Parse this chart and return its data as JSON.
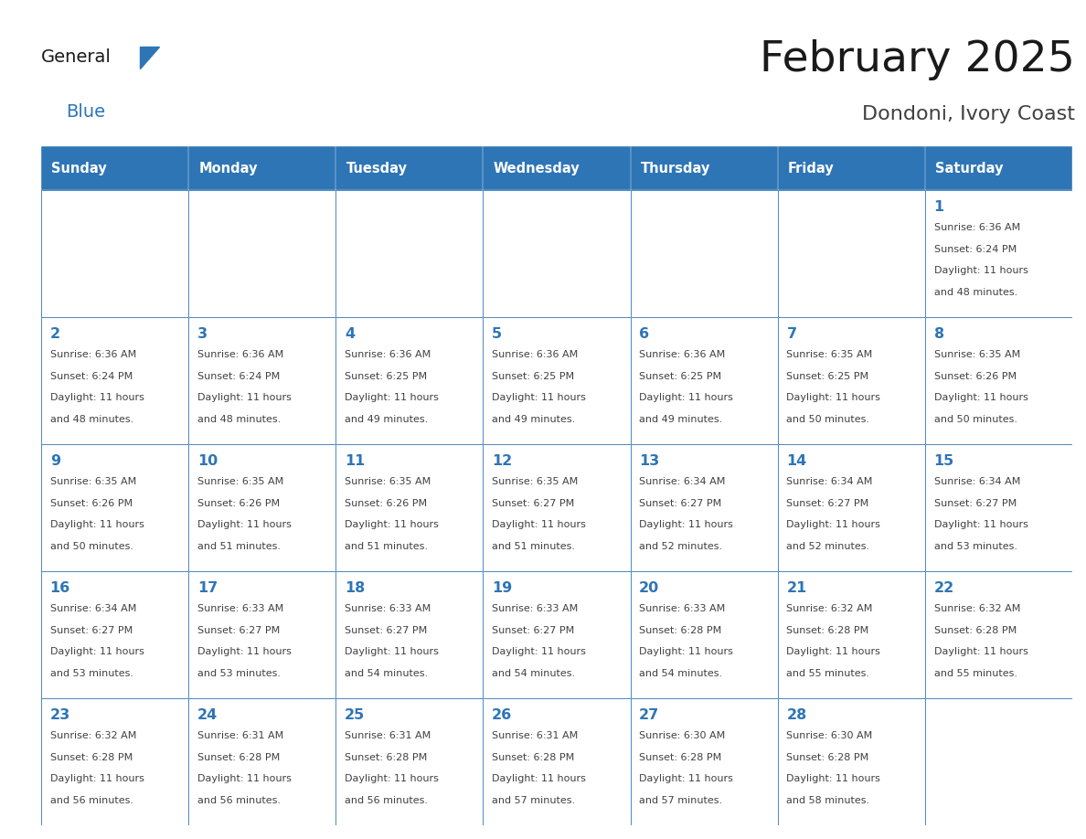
{
  "title": "February 2025",
  "subtitle": "Dondoni, Ivory Coast",
  "days_of_week": [
    "Sunday",
    "Monday",
    "Tuesday",
    "Wednesday",
    "Thursday",
    "Friday",
    "Saturday"
  ],
  "header_bg": "#2E75B6",
  "header_text": "#FFFFFF",
  "cell_bg": "#FFFFFF",
  "border_color": "#2E75B6",
  "day_num_color": "#2E75B6",
  "info_color": "#404040",
  "title_color": "#1a1a1a",
  "subtitle_color": "#404040",
  "logo_general_color": "#1a1a1a",
  "logo_blue_color": "#2E75B6",
  "calendar": [
    [
      null,
      null,
      null,
      null,
      null,
      null,
      {
        "day": 1,
        "sunrise": "6:36 AM",
        "sunset": "6:24 PM",
        "daylight_line1": "Daylight: 11 hours",
        "daylight_line2": "and 48 minutes."
      }
    ],
    [
      {
        "day": 2,
        "sunrise": "6:36 AM",
        "sunset": "6:24 PM",
        "daylight_line1": "Daylight: 11 hours",
        "daylight_line2": "and 48 minutes."
      },
      {
        "day": 3,
        "sunrise": "6:36 AM",
        "sunset": "6:24 PM",
        "daylight_line1": "Daylight: 11 hours",
        "daylight_line2": "and 48 minutes."
      },
      {
        "day": 4,
        "sunrise": "6:36 AM",
        "sunset": "6:25 PM",
        "daylight_line1": "Daylight: 11 hours",
        "daylight_line2": "and 49 minutes."
      },
      {
        "day": 5,
        "sunrise": "6:36 AM",
        "sunset": "6:25 PM",
        "daylight_line1": "Daylight: 11 hours",
        "daylight_line2": "and 49 minutes."
      },
      {
        "day": 6,
        "sunrise": "6:36 AM",
        "sunset": "6:25 PM",
        "daylight_line1": "Daylight: 11 hours",
        "daylight_line2": "and 49 minutes."
      },
      {
        "day": 7,
        "sunrise": "6:35 AM",
        "sunset": "6:25 PM",
        "daylight_line1": "Daylight: 11 hours",
        "daylight_line2": "and 50 minutes."
      },
      {
        "day": 8,
        "sunrise": "6:35 AM",
        "sunset": "6:26 PM",
        "daylight_line1": "Daylight: 11 hours",
        "daylight_line2": "and 50 minutes."
      }
    ],
    [
      {
        "day": 9,
        "sunrise": "6:35 AM",
        "sunset": "6:26 PM",
        "daylight_line1": "Daylight: 11 hours",
        "daylight_line2": "and 50 minutes."
      },
      {
        "day": 10,
        "sunrise": "6:35 AM",
        "sunset": "6:26 PM",
        "daylight_line1": "Daylight: 11 hours",
        "daylight_line2": "and 51 minutes."
      },
      {
        "day": 11,
        "sunrise": "6:35 AM",
        "sunset": "6:26 PM",
        "daylight_line1": "Daylight: 11 hours",
        "daylight_line2": "and 51 minutes."
      },
      {
        "day": 12,
        "sunrise": "6:35 AM",
        "sunset": "6:27 PM",
        "daylight_line1": "Daylight: 11 hours",
        "daylight_line2": "and 51 minutes."
      },
      {
        "day": 13,
        "sunrise": "6:34 AM",
        "sunset": "6:27 PM",
        "daylight_line1": "Daylight: 11 hours",
        "daylight_line2": "and 52 minutes."
      },
      {
        "day": 14,
        "sunrise": "6:34 AM",
        "sunset": "6:27 PM",
        "daylight_line1": "Daylight: 11 hours",
        "daylight_line2": "and 52 minutes."
      },
      {
        "day": 15,
        "sunrise": "6:34 AM",
        "sunset": "6:27 PM",
        "daylight_line1": "Daylight: 11 hours",
        "daylight_line2": "and 53 minutes."
      }
    ],
    [
      {
        "day": 16,
        "sunrise": "6:34 AM",
        "sunset": "6:27 PM",
        "daylight_line1": "Daylight: 11 hours",
        "daylight_line2": "and 53 minutes."
      },
      {
        "day": 17,
        "sunrise": "6:33 AM",
        "sunset": "6:27 PM",
        "daylight_line1": "Daylight: 11 hours",
        "daylight_line2": "and 53 minutes."
      },
      {
        "day": 18,
        "sunrise": "6:33 AM",
        "sunset": "6:27 PM",
        "daylight_line1": "Daylight: 11 hours",
        "daylight_line2": "and 54 minutes."
      },
      {
        "day": 19,
        "sunrise": "6:33 AM",
        "sunset": "6:27 PM",
        "daylight_line1": "Daylight: 11 hours",
        "daylight_line2": "and 54 minutes."
      },
      {
        "day": 20,
        "sunrise": "6:33 AM",
        "sunset": "6:28 PM",
        "daylight_line1": "Daylight: 11 hours",
        "daylight_line2": "and 54 minutes."
      },
      {
        "day": 21,
        "sunrise": "6:32 AM",
        "sunset": "6:28 PM",
        "daylight_line1": "Daylight: 11 hours",
        "daylight_line2": "and 55 minutes."
      },
      {
        "day": 22,
        "sunrise": "6:32 AM",
        "sunset": "6:28 PM",
        "daylight_line1": "Daylight: 11 hours",
        "daylight_line2": "and 55 minutes."
      }
    ],
    [
      {
        "day": 23,
        "sunrise": "6:32 AM",
        "sunset": "6:28 PM",
        "daylight_line1": "Daylight: 11 hours",
        "daylight_line2": "and 56 minutes."
      },
      {
        "day": 24,
        "sunrise": "6:31 AM",
        "sunset": "6:28 PM",
        "daylight_line1": "Daylight: 11 hours",
        "daylight_line2": "and 56 minutes."
      },
      {
        "day": 25,
        "sunrise": "6:31 AM",
        "sunset": "6:28 PM",
        "daylight_line1": "Daylight: 11 hours",
        "daylight_line2": "and 56 minutes."
      },
      {
        "day": 26,
        "sunrise": "6:31 AM",
        "sunset": "6:28 PM",
        "daylight_line1": "Daylight: 11 hours",
        "daylight_line2": "and 57 minutes."
      },
      {
        "day": 27,
        "sunrise": "6:30 AM",
        "sunset": "6:28 PM",
        "daylight_line1": "Daylight: 11 hours",
        "daylight_line2": "and 57 minutes."
      },
      {
        "day": 28,
        "sunrise": "6:30 AM",
        "sunset": "6:28 PM",
        "daylight_line1": "Daylight: 11 hours",
        "daylight_line2": "and 58 minutes."
      },
      null
    ]
  ]
}
